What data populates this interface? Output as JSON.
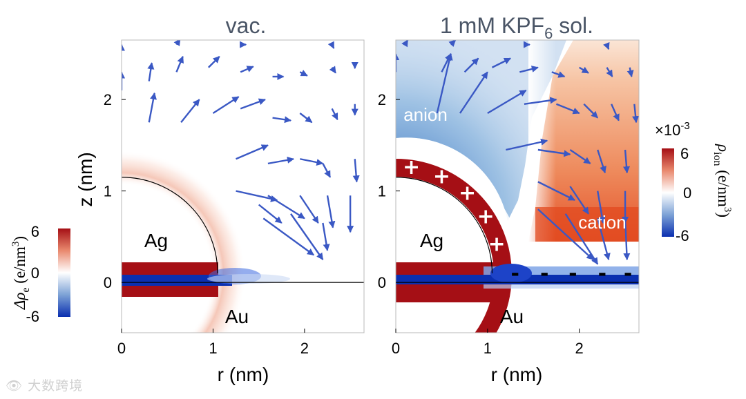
{
  "chart_data": [
    {
      "type": "heatmap",
      "title": "vac.",
      "xlabel": "r (nm)",
      "ylabel": "z (nm)",
      "xlim": [
        0,
        2.65
      ],
      "ylim": [
        -0.55,
        2.65
      ],
      "xticks": [
        "0",
        "1",
        "2"
      ],
      "xtick_values": [
        0,
        1,
        2
      ],
      "yticks": [
        "0",
        "1",
        "2"
      ],
      "ytick_values": [
        0,
        1,
        2
      ],
      "annotations": [
        "Ag",
        "Au"
      ],
      "sphere_radius": 1.05,
      "vectors": [
        {
          "r": 0.0,
          "z": 2.1,
          "dr": 0.0,
          "dz": 0.2
        },
        {
          "r": 0.3,
          "z": 1.75,
          "dr": 0.06,
          "dz": 0.32
        },
        {
          "r": 0.65,
          "z": 1.75,
          "dr": 0.2,
          "dz": 0.25
        },
        {
          "r": 1.0,
          "z": 1.85,
          "dr": 0.28,
          "dz": 0.18
        },
        {
          "r": 0.3,
          "z": 2.2,
          "dr": 0.03,
          "dz": 0.2
        },
        {
          "r": 0.6,
          "z": 2.3,
          "dr": 0.07,
          "dz": 0.17
        },
        {
          "r": 0.95,
          "z": 2.35,
          "dr": 0.12,
          "dz": 0.12
        },
        {
          "r": 1.3,
          "z": 2.3,
          "dr": 0.14,
          "dz": 0.06
        },
        {
          "r": 1.65,
          "z": 2.25,
          "dr": 0.12,
          "dz": 0.0
        },
        {
          "r": 1.3,
          "z": 1.9,
          "dr": 0.27,
          "dz": 0.1
        },
        {
          "r": 1.65,
          "z": 1.8,
          "dr": 0.2,
          "dz": -0.03
        },
        {
          "r": 1.95,
          "z": 1.85,
          "dr": 0.13,
          "dz": -0.1
        },
        {
          "r": 2.3,
          "z": 1.9,
          "dr": 0.06,
          "dz": -0.12
        },
        {
          "r": 2.55,
          "z": 1.95,
          "dr": 0.0,
          "dz": -0.12
        },
        {
          "r": 1.95,
          "z": 2.3,
          "dr": 0.08,
          "dz": -0.04
        },
        {
          "r": 2.3,
          "z": 2.35,
          "dr": 0.04,
          "dz": -0.06
        },
        {
          "r": 2.55,
          "z": 2.4,
          "dr": 0.0,
          "dz": -0.06
        },
        {
          "r": 0.0,
          "z": 2.55,
          "dr": 0.0,
          "dz": 0.05
        },
        {
          "r": 0.6,
          "z": 2.6,
          "dr": 0.04,
          "dz": 0.06
        },
        {
          "r": 1.3,
          "z": 2.6,
          "dr": 0.06,
          "dz": 0.0
        },
        {
          "r": 2.3,
          "z": 2.6,
          "dr": 0.02,
          "dz": -0.04
        },
        {
          "r": 1.25,
          "z": 1.35,
          "dr": 0.35,
          "dz": 0.15
        },
        {
          "r": 1.6,
          "z": 1.3,
          "dr": 0.28,
          "dz": 0.05
        },
        {
          "r": 1.95,
          "z": 1.35,
          "dr": 0.25,
          "dz": -0.05
        },
        {
          "r": 2.2,
          "z": 1.3,
          "dr": 0.08,
          "dz": -0.15
        },
        {
          "r": 2.55,
          "z": 1.35,
          "dr": 0.02,
          "dz": -0.25
        },
        {
          "r": 1.25,
          "z": 1.0,
          "dr": 0.45,
          "dz": -0.1
        },
        {
          "r": 1.6,
          "z": 0.95,
          "dr": 0.4,
          "dz": -0.25
        },
        {
          "r": 1.95,
          "z": 0.95,
          "dr": 0.2,
          "dz": -0.3
        },
        {
          "r": 2.25,
          "z": 0.95,
          "dr": 0.06,
          "dz": -0.35
        },
        {
          "r": 2.5,
          "z": 0.95,
          "dr": 0.0,
          "dz": -0.4
        },
        {
          "r": 1.55,
          "z": 0.7,
          "dr": 0.55,
          "dz": -0.4
        },
        {
          "r": 1.85,
          "z": 0.75,
          "dr": 0.35,
          "dz": -0.5
        },
        {
          "r": 2.2,
          "z": 0.65,
          "dr": 0.05,
          "dz": -0.3
        },
        {
          "r": 1.5,
          "z": 0.85,
          "dr": 0.25,
          "dz": -0.2
        }
      ]
    },
    {
      "type": "heatmap",
      "title": "1 mM KPF",
      "title_subscript": "6",
      "title_suffix": " sol.",
      "xlabel": "r (nm)",
      "ylabel": "",
      "xlim": [
        0,
        2.65
      ],
      "ylim": [
        -0.55,
        2.65
      ],
      "xticks": [
        "0",
        "1",
        "2"
      ],
      "xtick_values": [
        0,
        1,
        2
      ],
      "yticks": [
        "0",
        "1",
        "2"
      ],
      "ytick_values": [
        0,
        1,
        2
      ],
      "annotations": [
        "Ag",
        "Au",
        "anion",
        "cation",
        "+",
        "-"
      ],
      "sphere_radius": 1.05,
      "plus_signs": [
        {
          "r": 0.17,
          "z": 1.26
        },
        {
          "r": 0.5,
          "z": 1.16
        },
        {
          "r": 0.78,
          "z": 0.98
        },
        {
          "r": 0.98,
          "z": 0.72
        },
        {
          "r": 1.1,
          "z": 0.42
        }
      ],
      "minus_signs": [
        {
          "r": 1.3,
          "z": 0.09
        },
        {
          "r": 1.62,
          "z": 0.09
        },
        {
          "r": 1.93,
          "z": 0.09
        },
        {
          "r": 2.25,
          "z": 0.09
        },
        {
          "r": 2.53,
          "z": 0.09
        }
      ],
      "vectors": [
        {
          "r": 0.0,
          "z": 2.3,
          "dr": 0.0,
          "dz": 0.2
        },
        {
          "r": 0.45,
          "z": 1.85,
          "dr": 0.15,
          "dz": 0.65
        },
        {
          "r": 0.7,
          "z": 1.85,
          "dr": 0.3,
          "dz": 0.45
        },
        {
          "r": 1.0,
          "z": 1.85,
          "dr": 0.42,
          "dz": 0.25
        },
        {
          "r": 0.5,
          "z": 2.3,
          "dr": 0.1,
          "dz": 0.2
        },
        {
          "r": 0.75,
          "z": 2.3,
          "dr": 0.15,
          "dz": 0.15
        },
        {
          "r": 1.05,
          "z": 2.35,
          "dr": 0.2,
          "dz": 0.1
        },
        {
          "r": 1.35,
          "z": 2.3,
          "dr": 0.2,
          "dz": 0.05
        },
        {
          "r": 1.7,
          "z": 2.3,
          "dr": 0.14,
          "dz": -0.05
        },
        {
          "r": 1.4,
          "z": 1.95,
          "dr": 0.35,
          "dz": 0.05
        },
        {
          "r": 1.75,
          "z": 1.95,
          "dr": 0.25,
          "dz": -0.1
        },
        {
          "r": 2.05,
          "z": 1.95,
          "dr": 0.15,
          "dz": -0.15
        },
        {
          "r": 2.35,
          "z": 1.95,
          "dr": 0.08,
          "dz": -0.18
        },
        {
          "r": 2.6,
          "z": 1.95,
          "dr": 0.02,
          "dz": -0.2
        },
        {
          "r": 2.0,
          "z": 2.35,
          "dr": 0.1,
          "dz": -0.06
        },
        {
          "r": 2.3,
          "z": 2.35,
          "dr": 0.06,
          "dz": -0.1
        },
        {
          "r": 2.55,
          "z": 2.35,
          "dr": 0.02,
          "dz": -0.1
        },
        {
          "r": 0.1,
          "z": 2.6,
          "dr": 0.03,
          "dz": 0.05
        },
        {
          "r": 0.6,
          "z": 2.6,
          "dr": 0.05,
          "dz": 0.05
        },
        {
          "r": 1.4,
          "z": 2.6,
          "dr": 0.06,
          "dz": 0.0
        },
        {
          "r": 2.3,
          "z": 2.6,
          "dr": 0.02,
          "dz": -0.05
        },
        {
          "r": 1.2,
          "z": 1.45,
          "dr": 0.45,
          "dz": 0.1
        },
        {
          "r": 1.55,
          "z": 1.45,
          "dr": 0.35,
          "dz": -0.05
        },
        {
          "r": 1.9,
          "z": 1.45,
          "dr": 0.22,
          "dz": -0.15
        },
        {
          "r": 2.2,
          "z": 1.45,
          "dr": 0.08,
          "dz": -0.25
        },
        {
          "r": 2.5,
          "z": 1.45,
          "dr": 0.02,
          "dz": -0.25
        },
        {
          "r": 1.55,
          "z": 1.1,
          "dr": 0.4,
          "dz": -0.2
        },
        {
          "r": 1.9,
          "z": 1.05,
          "dr": 0.2,
          "dz": -0.3
        },
        {
          "r": 2.2,
          "z": 1.0,
          "dr": 0.06,
          "dz": -0.35
        },
        {
          "r": 2.5,
          "z": 1.0,
          "dr": 0.0,
          "dz": -0.35
        },
        {
          "r": 1.55,
          "z": 0.8,
          "dr": 0.6,
          "dz": -0.55
        },
        {
          "r": 1.85,
          "z": 0.75,
          "dr": 0.35,
          "dz": -0.55
        },
        {
          "r": 2.2,
          "z": 0.7,
          "dr": 0.12,
          "dz": -0.45
        },
        {
          "r": 2.5,
          "z": 0.7,
          "dr": 0.02,
          "dz": -0.45
        }
      ]
    }
  ],
  "colorbar_left": {
    "label": "Δρ",
    "label_sub": "e",
    "label_unit": " (e/nm",
    "label_unit_sup": "3",
    "label_unit_end": ")",
    "ticks": [
      "6",
      "0",
      "-6"
    ],
    "tick_values": [
      6,
      0,
      -6
    ]
  },
  "colorbar_right": {
    "multiplier": "×10",
    "multiplier_exp": "-3",
    "label": "ρ",
    "label_sub": "ion",
    "label_unit": " (e/nm",
    "label_unit_sup": "3",
    "label_unit_end": ")",
    "ticks": [
      "6",
      "0",
      "-6"
    ],
    "tick_values": [
      6,
      0,
      -6
    ]
  },
  "watermark": "大数跨境",
  "colors": {
    "arrow": "#3a58c4",
    "red": "#a50f15",
    "blue": "#08288a",
    "axis": "#000000",
    "title": "#4a5566"
  }
}
